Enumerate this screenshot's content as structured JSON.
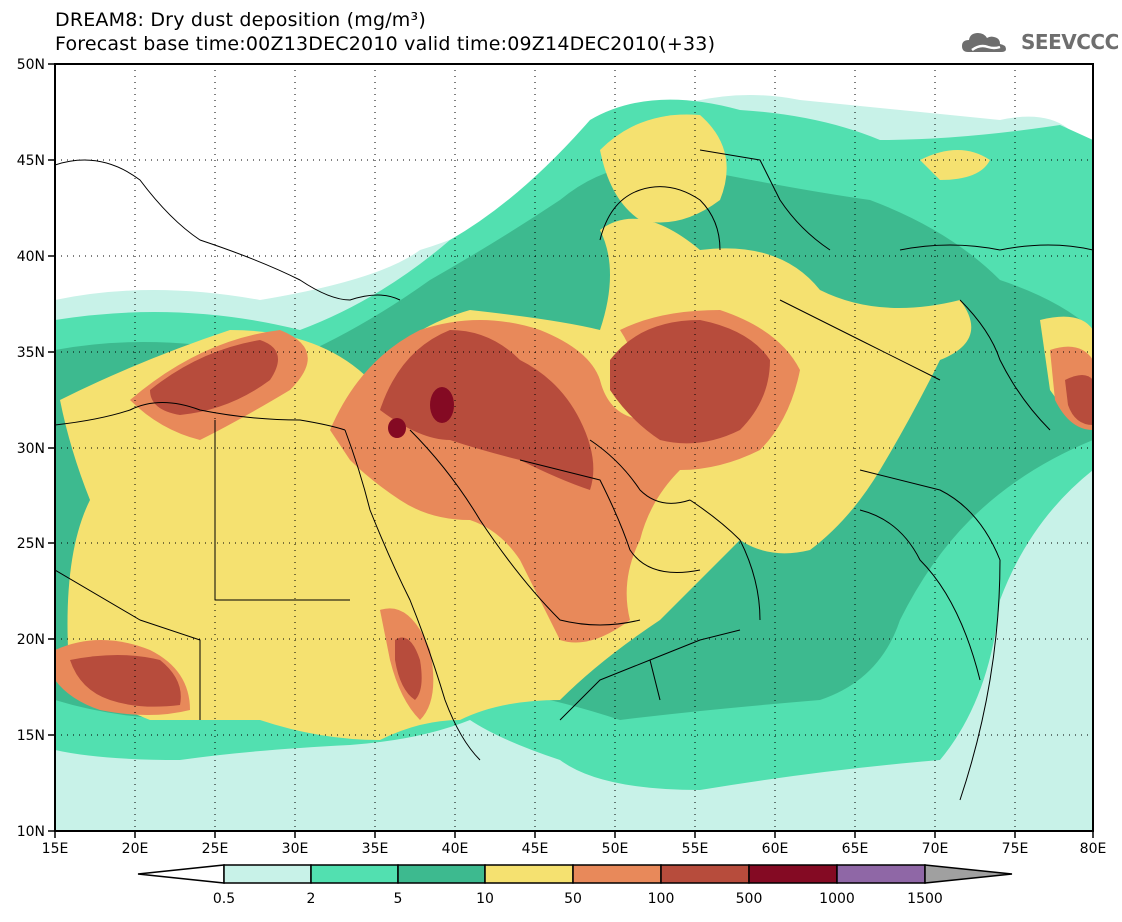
{
  "header": {
    "title_line1": "DREAM8: Dry dust deposition (mg/m³)",
    "title_line2": "Forecast base time:00Z13DEC2010 valid time:09Z14DEC2010(+33)",
    "logo_text": "SEEVCCC",
    "logo_icon": "cloud-icon"
  },
  "map": {
    "lon_labels": [
      "15E",
      "20E",
      "25E",
      "30E",
      "35E",
      "40E",
      "45E",
      "50E",
      "55E",
      "60E",
      "65E",
      "70E",
      "75E",
      "80E"
    ],
    "lat_labels": [
      "50N",
      "45N",
      "40N",
      "35N",
      "30N",
      "25N",
      "20N",
      "15N",
      "10N"
    ],
    "lon_range": [
      15,
      80
    ],
    "lat_range": [
      10,
      50
    ],
    "grid": "dotted"
  },
  "legend": {
    "labels": [
      "0.5",
      "2",
      "5",
      "10",
      "50",
      "100",
      "500",
      "1000",
      "1500"
    ],
    "colors": [
      "#ffffff",
      "#c8f2e8",
      "#52e0b0",
      "#3dba8f",
      "#f5e170",
      "#e8895a",
      "#b74c3c",
      "#840a23",
      "#8f67a6",
      "#a0a0a0"
    ]
  },
  "colors": {
    "very_low": "#c8f2e8",
    "low": "#52e0b0",
    "low_mid": "#3dba8f",
    "mid": "#f5e170",
    "mid_high": "#e8895a",
    "high": "#b74c3c",
    "very_high": "#840a23",
    "extreme": "#8f67a6"
  }
}
